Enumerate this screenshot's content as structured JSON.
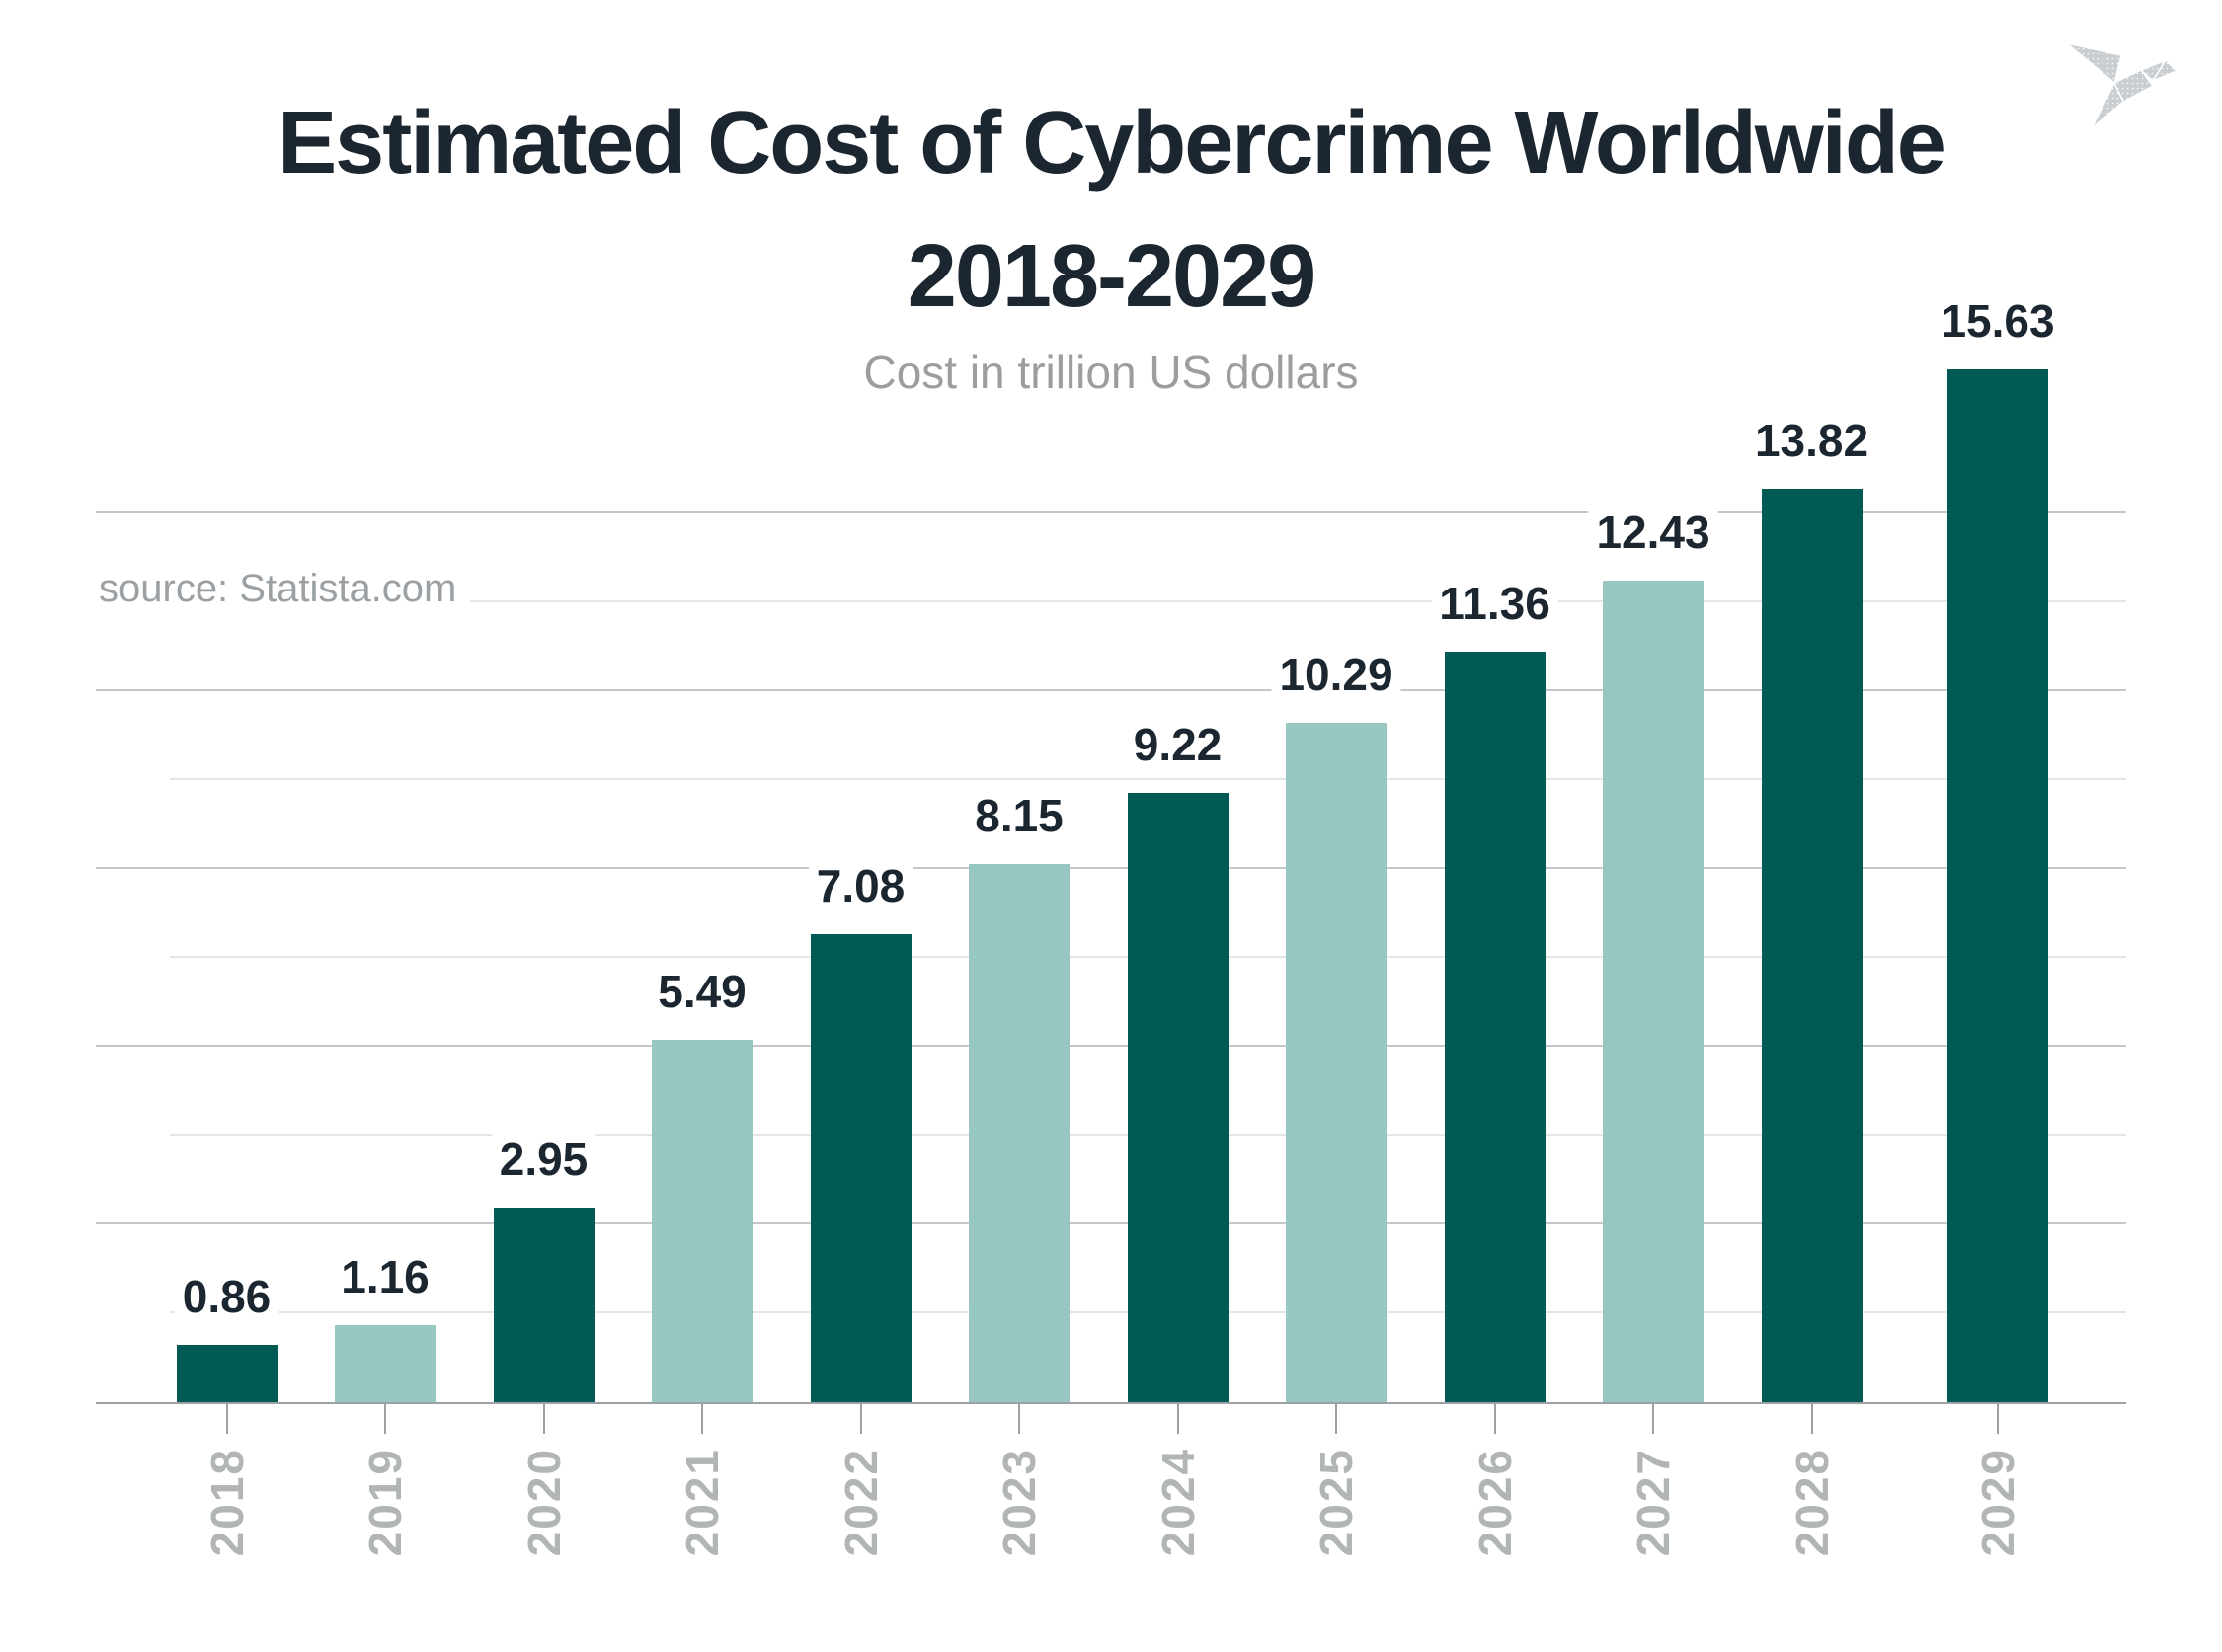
{
  "header": {
    "title_line1": "Estimated Cost of Cybercrime Worldwide",
    "title_line2": "2018-2029",
    "subtitle": "Cost in trillion US dollars"
  },
  "source_label": "source: Statista.com",
  "logo": {
    "icon": "origami-bird-icon"
  },
  "colors": {
    "background": "#ffffff",
    "bar_dark": "#015b54",
    "bar_light": "#98c7c2",
    "title_text": "#1b2630",
    "subtitle_text": "#9d9d9d",
    "source_text": "#9aa0a3",
    "year_label_text": "#b2b5b6",
    "axis_line": "#9ba1a5",
    "grid_major": "#c2c7cb",
    "grid_minor": "#e3e6e8",
    "logo_gray": "#c9ced2"
  },
  "chart_data": {
    "type": "bar",
    "title": "Estimated Cost of Cybercrime Worldwide 2018-2029",
    "subtitle": "Cost in trillion US dollars",
    "unit": "trillion US dollars",
    "categories": [
      "2018",
      "2019",
      "2020",
      "2021",
      "2022",
      "2023",
      "2024",
      "2025",
      "2026",
      "2027",
      "2028",
      "2029"
    ],
    "values": [
      0.86,
      1.16,
      2.95,
      5.49,
      7.08,
      8.15,
      9.22,
      10.29,
      11.36,
      12.43,
      13.82,
      15.63
    ],
    "value_labels": [
      "0.86",
      "1.16",
      "2.95",
      "5.49",
      "7.08",
      "8.15",
      "9.22",
      "10.29",
      "11.36",
      "12.43",
      "13.82",
      "15.63"
    ],
    "bar_styles": [
      "dark",
      "light",
      "dark",
      "light",
      "dark",
      "light",
      "dark",
      "light",
      "dark",
      "light",
      "dark",
      "dark"
    ],
    "ylim": [
      0,
      16
    ],
    "xlabel": "",
    "ylabel": "",
    "grid": "horizontal",
    "legend": "none",
    "x_tick_rotation": -90,
    "source": "source: Statista.com"
  }
}
